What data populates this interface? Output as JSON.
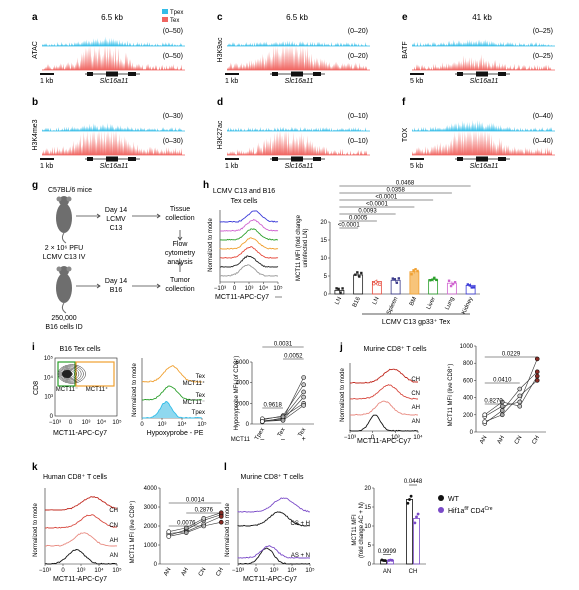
{
  "panels": {
    "a": {
      "letter": "a",
      "size": "6.5 kb",
      "track": "ATAC",
      "range_top": "(0–50)",
      "range_bot": "(0–50)",
      "scale": "1 kb",
      "gene": "Slc16a11",
      "legend": [
        {
          "label": "Tpex",
          "color": "#33bde8"
        },
        {
          "label": "Tex",
          "color": "#f06561"
        }
      ]
    },
    "b": {
      "letter": "b",
      "track": "H3K4me3",
      "range_top": "(0–30)",
      "range_bot": "(0–30)",
      "scale": "1 kb",
      "gene": "Slc16a11"
    },
    "c": {
      "letter": "c",
      "size": "6.5 kb",
      "track": "H3K9ac",
      "range_top": "(0–20)",
      "range_bot": "(0–20)",
      "scale": "1 kb",
      "gene": "Slc16a11"
    },
    "d": {
      "letter": "d",
      "track": "H3K27ac",
      "range_top": "(0–10)",
      "range_bot": "(0–10)",
      "scale": "1 kb",
      "gene": "Slc16a11"
    },
    "e": {
      "letter": "e",
      "size": "41 kb",
      "track": "BATF",
      "range_top": "(0–25)",
      "range_bot": "(0–25)",
      "scale": "5 kb",
      "gene": "Slc16a11"
    },
    "f": {
      "letter": "f",
      "track": "TOX",
      "range_top": "(0–40)",
      "range_bot": "(0–40)",
      "scale": "5 kb",
      "gene": "Slc16a11"
    },
    "g": {
      "letter": "g",
      "mice": "C57BL/6 mice",
      "dose": "2 × 10⁶ PFU",
      "virus": "LCMV C13 IV",
      "cells": "250,000",
      "cells2": "B16 cells ID",
      "day1": "Day 14",
      "day1b": "LCMV",
      "day1c": "C13",
      "day2": "Day 14",
      "day2b": "B16",
      "out1": "Tissue",
      "out1b": "collection",
      "flow": "Flow",
      "flow2": "cytometry",
      "flow3": "analysis",
      "out2": "Tumor",
      "out2b": "collection"
    },
    "h": {
      "letter": "h",
      "title": "LCMV C13 and B16",
      "title2": "Tex cells",
      "ylabel": "Normalized to mode",
      "xlabel": "MCT11-APC-Cy7",
      "ylabel2": "MCT11 MFI (fold change",
      "ylabel3": "uninfected LN)",
      "group_label": "LCMV C13 gp33⁺ Tex"
    },
    "i": {
      "letter": "i",
      "title": "B16 Tex cells",
      "ylabel": "CD8",
      "xlabel": "MCT11-APC-Cy7",
      "gate_neg": "MCT11⁻",
      "gate_pos": "MCT11⁺",
      "hist_labels": [
        "Tex",
        "MCT11⁺",
        "Tex",
        "MCT11⁻",
        "Tpex"
      ],
      "xlabel2": "Hypoxyprobe - PE",
      "ylabel2": "Normalized to mode",
      "ylabel3": "Hypoxyprobe MFI (of CD8⁺)",
      "mct_row": "MCT11",
      "signs": [
        "–",
        "–",
        "+"
      ]
    },
    "j": {
      "letter": "j",
      "title": "Murine CD8⁺ T cells",
      "ylabel": "Normalized to mode",
      "xlabel": "MCT11-APC-Cy7",
      "ylabel2": "MCT11 MFI (live CD8⁺)",
      "hist_labels": [
        "CH",
        "CN",
        "AH",
        "AN"
      ]
    },
    "k": {
      "letter": "k",
      "title": "Human CD8⁺ T cells",
      "ylabel": "Normalized to mode",
      "xlabel": "MCT11-APC-Cy7",
      "ylabel2": "MCT11 MFI (live CD8⁺)",
      "hist_labels": [
        "CH",
        "CN",
        "AH",
        "AN"
      ]
    },
    "l": {
      "letter": "l",
      "title": "Murine CD8⁺ T cells",
      "ylabel": "Normalized to mode",
      "xlabel": "MCT11-APC-Cy7",
      "hist_labels": [
        "CS + H",
        "AS + N"
      ],
      "ylabel2": "MCT11 MFI",
      "ylabel3": "(fold change AC + N)",
      "legend": [
        {
          "label": "WT"
        },
        {
          "label": "Hif1a",
          "sup": "f/f",
          "rest": " CD4",
          "sup2": "Cre"
        }
      ]
    }
  },
  "chart_data": [
    {
      "id": "h_bar",
      "type": "bar",
      "categories": [
        "LN",
        "B16",
        "LN",
        "Spleen",
        "BM",
        "Liver",
        "Lung",
        "Kidney"
      ],
      "values": [
        1.0,
        5.3,
        3.5,
        3.8,
        6.2,
        4.0,
        3.0,
        2.4
      ],
      "ylim": [
        0,
        20
      ],
      "yticks": [
        0,
        5,
        10,
        15,
        20
      ],
      "colors": [
        "#222222",
        "#222222",
        "#e64a3c",
        "#3a3a8a",
        "#f0a030",
        "#2ca02c",
        "#d063d0",
        "#3a3ad8"
      ],
      "pvalues": [
        "0.0468",
        "0.0358",
        "<0.0001",
        "<0.0001",
        "0.0093",
        "0.0005",
        "<0.0001"
      ]
    },
    {
      "id": "i_paired",
      "type": "scatter",
      "categories": [
        "Tpex",
        "Tex",
        "Tex"
      ],
      "ylim": [
        0,
        6000
      ],
      "yticks": [
        0,
        2000,
        4000,
        6000
      ],
      "pvalues": [
        "0.0031",
        "0.0052",
        "0.9618"
      ]
    },
    {
      "id": "j_paired",
      "type": "line",
      "categories": [
        "AN",
        "AH",
        "CN",
        "CH"
      ],
      "ylim": [
        0,
        1000
      ],
      "yticks": [
        0,
        200,
        400,
        600,
        800,
        1000
      ],
      "pvalues": [
        "0.0229",
        "0.0410",
        "0.8270"
      ]
    },
    {
      "id": "k_paired",
      "type": "line",
      "categories": [
        "AN",
        "AH",
        "CN",
        "CH"
      ],
      "ylim": [
        0,
        4000
      ],
      "yticks": [
        0,
        1000,
        2000,
        3000,
        4000
      ],
      "pvalues": [
        "0.0014",
        "0.2876",
        "0.0076"
      ]
    },
    {
      "id": "l_bar",
      "type": "bar",
      "categories": [
        "AN",
        "CH"
      ],
      "series": [
        {
          "values": [
            1.0,
            17.0
          ]
        },
        {
          "values": [
            1.0,
            12.0
          ]
        }
      ],
      "ylim": [
        0,
        20
      ],
      "yticks": [
        0,
        5,
        10,
        15,
        20
      ],
      "pvalues": [
        "0.9999",
        "0.0448"
      ]
    }
  ],
  "tick_labels": {
    "flow_x": [
      "−10³",
      "0",
      "10³",
      "10⁴",
      "10⁵"
    ],
    "flow_x3": [
      "−10³",
      "0",
      "10³",
      "10⁴"
    ],
    "dot_x": [
      "−10³",
      "0",
      "10³",
      "10⁴",
      "10⁵"
    ],
    "dot_y": [
      "0",
      "10³",
      "10⁴",
      "10⁵"
    ],
    "hyp_x": [
      "0",
      "10³",
      "10⁴",
      "10⁵"
    ]
  },
  "colors": {
    "tpex": "#33bde8",
    "tex": "#f06561"
  }
}
